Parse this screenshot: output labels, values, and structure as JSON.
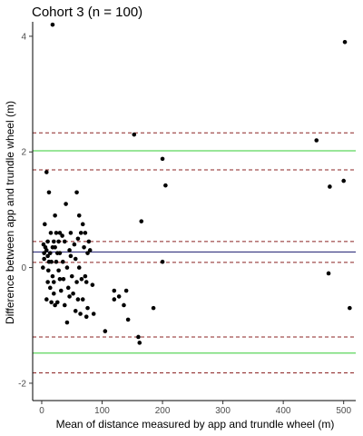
{
  "chart_data": {
    "type": "scatter",
    "title": "Cohort  3 (n = 100)",
    "xlabel": "Mean of distance measured by app and trundle wheel (m)",
    "ylabel": "Difference between app and trundle wheel (m)",
    "xlim": [
      -15,
      520
    ],
    "ylim": [
      -2.3,
      4.25
    ],
    "xticks": [
      0,
      100,
      200,
      300,
      400,
      500
    ],
    "yticks": [
      -2,
      0,
      2,
      4
    ],
    "grid": false,
    "reference_lines": [
      {
        "y": 0.27,
        "color": "#1a1a6e",
        "style": "solid"
      },
      {
        "y": 2.02,
        "color": "#33cc33",
        "style": "solid"
      },
      {
        "y": -1.48,
        "color": "#33cc33",
        "style": "solid"
      },
      {
        "y": 0.45,
        "color": "#8b2323",
        "style": "dashed"
      },
      {
        "y": 0.09,
        "color": "#8b2323",
        "style": "dashed"
      },
      {
        "y": 2.33,
        "color": "#8b2323",
        "style": "dashed"
      },
      {
        "y": 1.69,
        "color": "#8b2323",
        "style": "dashed"
      },
      {
        "y": -1.2,
        "color": "#8b2323",
        "style": "dashed"
      },
      {
        "y": -1.82,
        "color": "#8b2323",
        "style": "dashed"
      }
    ],
    "points": [
      [
        18,
        4.2
      ],
      [
        153,
        2.3
      ],
      [
        455,
        2.2
      ],
      [
        502,
        3.9
      ],
      [
        200,
        1.88
      ],
      [
        205,
        1.42
      ],
      [
        477,
        1.4
      ],
      [
        500,
        1.5
      ],
      [
        200,
        0.1
      ],
      [
        475,
        -0.1
      ],
      [
        510,
        -0.7
      ],
      [
        165,
        0.8
      ],
      [
        8,
        1.65
      ],
      [
        12,
        1.3
      ],
      [
        58,
        1.3
      ],
      [
        40,
        1.1
      ],
      [
        22,
        0.9
      ],
      [
        5,
        0.75
      ],
      [
        62,
        0.9
      ],
      [
        68,
        0.75
      ],
      [
        72,
        0.6
      ],
      [
        78,
        0.45
      ],
      [
        65,
        0.6
      ],
      [
        48,
        0.6
      ],
      [
        30,
        0.6
      ],
      [
        15,
        0.6
      ],
      [
        24,
        0.6
      ],
      [
        20,
        0.45
      ],
      [
        10,
        0.45
      ],
      [
        3,
        0.4
      ],
      [
        8,
        0.3
      ],
      [
        14,
        0.25
      ],
      [
        18,
        0.35
      ],
      [
        22,
        0.35
      ],
      [
        6,
        0.35
      ],
      [
        4,
        0.25
      ],
      [
        10,
        0.2
      ],
      [
        12,
        0.1
      ],
      [
        2,
        0.0
      ],
      [
        16,
        0.1
      ],
      [
        24,
        0.1
      ],
      [
        30,
        0.25
      ],
      [
        38,
        0.45
      ],
      [
        46,
        0.3
      ],
      [
        54,
        0.4
      ],
      [
        60,
        0.5
      ],
      [
        70,
        0.35
      ],
      [
        76,
        0.25
      ],
      [
        80,
        0.3
      ],
      [
        35,
        0.1
      ],
      [
        42,
        0.0
      ],
      [
        50,
        -0.15
      ],
      [
        58,
        -0.25
      ],
      [
        66,
        -0.2
      ],
      [
        74,
        -0.25
      ],
      [
        84,
        -0.3
      ],
      [
        72,
        -0.15
      ],
      [
        28,
        -0.05
      ],
      [
        36,
        -0.2
      ],
      [
        44,
        -0.35
      ],
      [
        52,
        -0.45
      ],
      [
        60,
        -0.55
      ],
      [
        68,
        -0.55
      ],
      [
        76,
        -0.7
      ],
      [
        18,
        -0.15
      ],
      [
        10,
        -0.25
      ],
      [
        14,
        -0.35
      ],
      [
        20,
        -0.45
      ],
      [
        26,
        -0.6
      ],
      [
        32,
        -0.4
      ],
      [
        38,
        -0.65
      ],
      [
        46,
        -0.5
      ],
      [
        8,
        -0.55
      ],
      [
        16,
        -0.6
      ],
      [
        22,
        -0.65
      ],
      [
        42,
        -0.95
      ],
      [
        56,
        -0.75
      ],
      [
        64,
        -0.8
      ],
      [
        74,
        -0.85
      ],
      [
        86,
        -0.8
      ],
      [
        30,
        -0.2
      ],
      [
        26,
        0.25
      ],
      [
        56,
        0.15
      ],
      [
        62,
        0.0
      ],
      [
        48,
        0.2
      ],
      [
        20,
        -0.25
      ],
      [
        4,
        0.15
      ],
      [
        11,
        -0.05
      ],
      [
        28,
        0.45
      ],
      [
        34,
        0.55
      ],
      [
        120,
        -0.4
      ],
      [
        128,
        -0.5
      ],
      [
        136,
        -0.65
      ],
      [
        143,
        -0.9
      ],
      [
        162,
        -1.3
      ],
      [
        160,
        -1.2
      ],
      [
        105,
        -1.1
      ],
      [
        185,
        -0.7
      ],
      [
        140,
        -0.4
      ],
      [
        120,
        -0.55
      ]
    ]
  }
}
